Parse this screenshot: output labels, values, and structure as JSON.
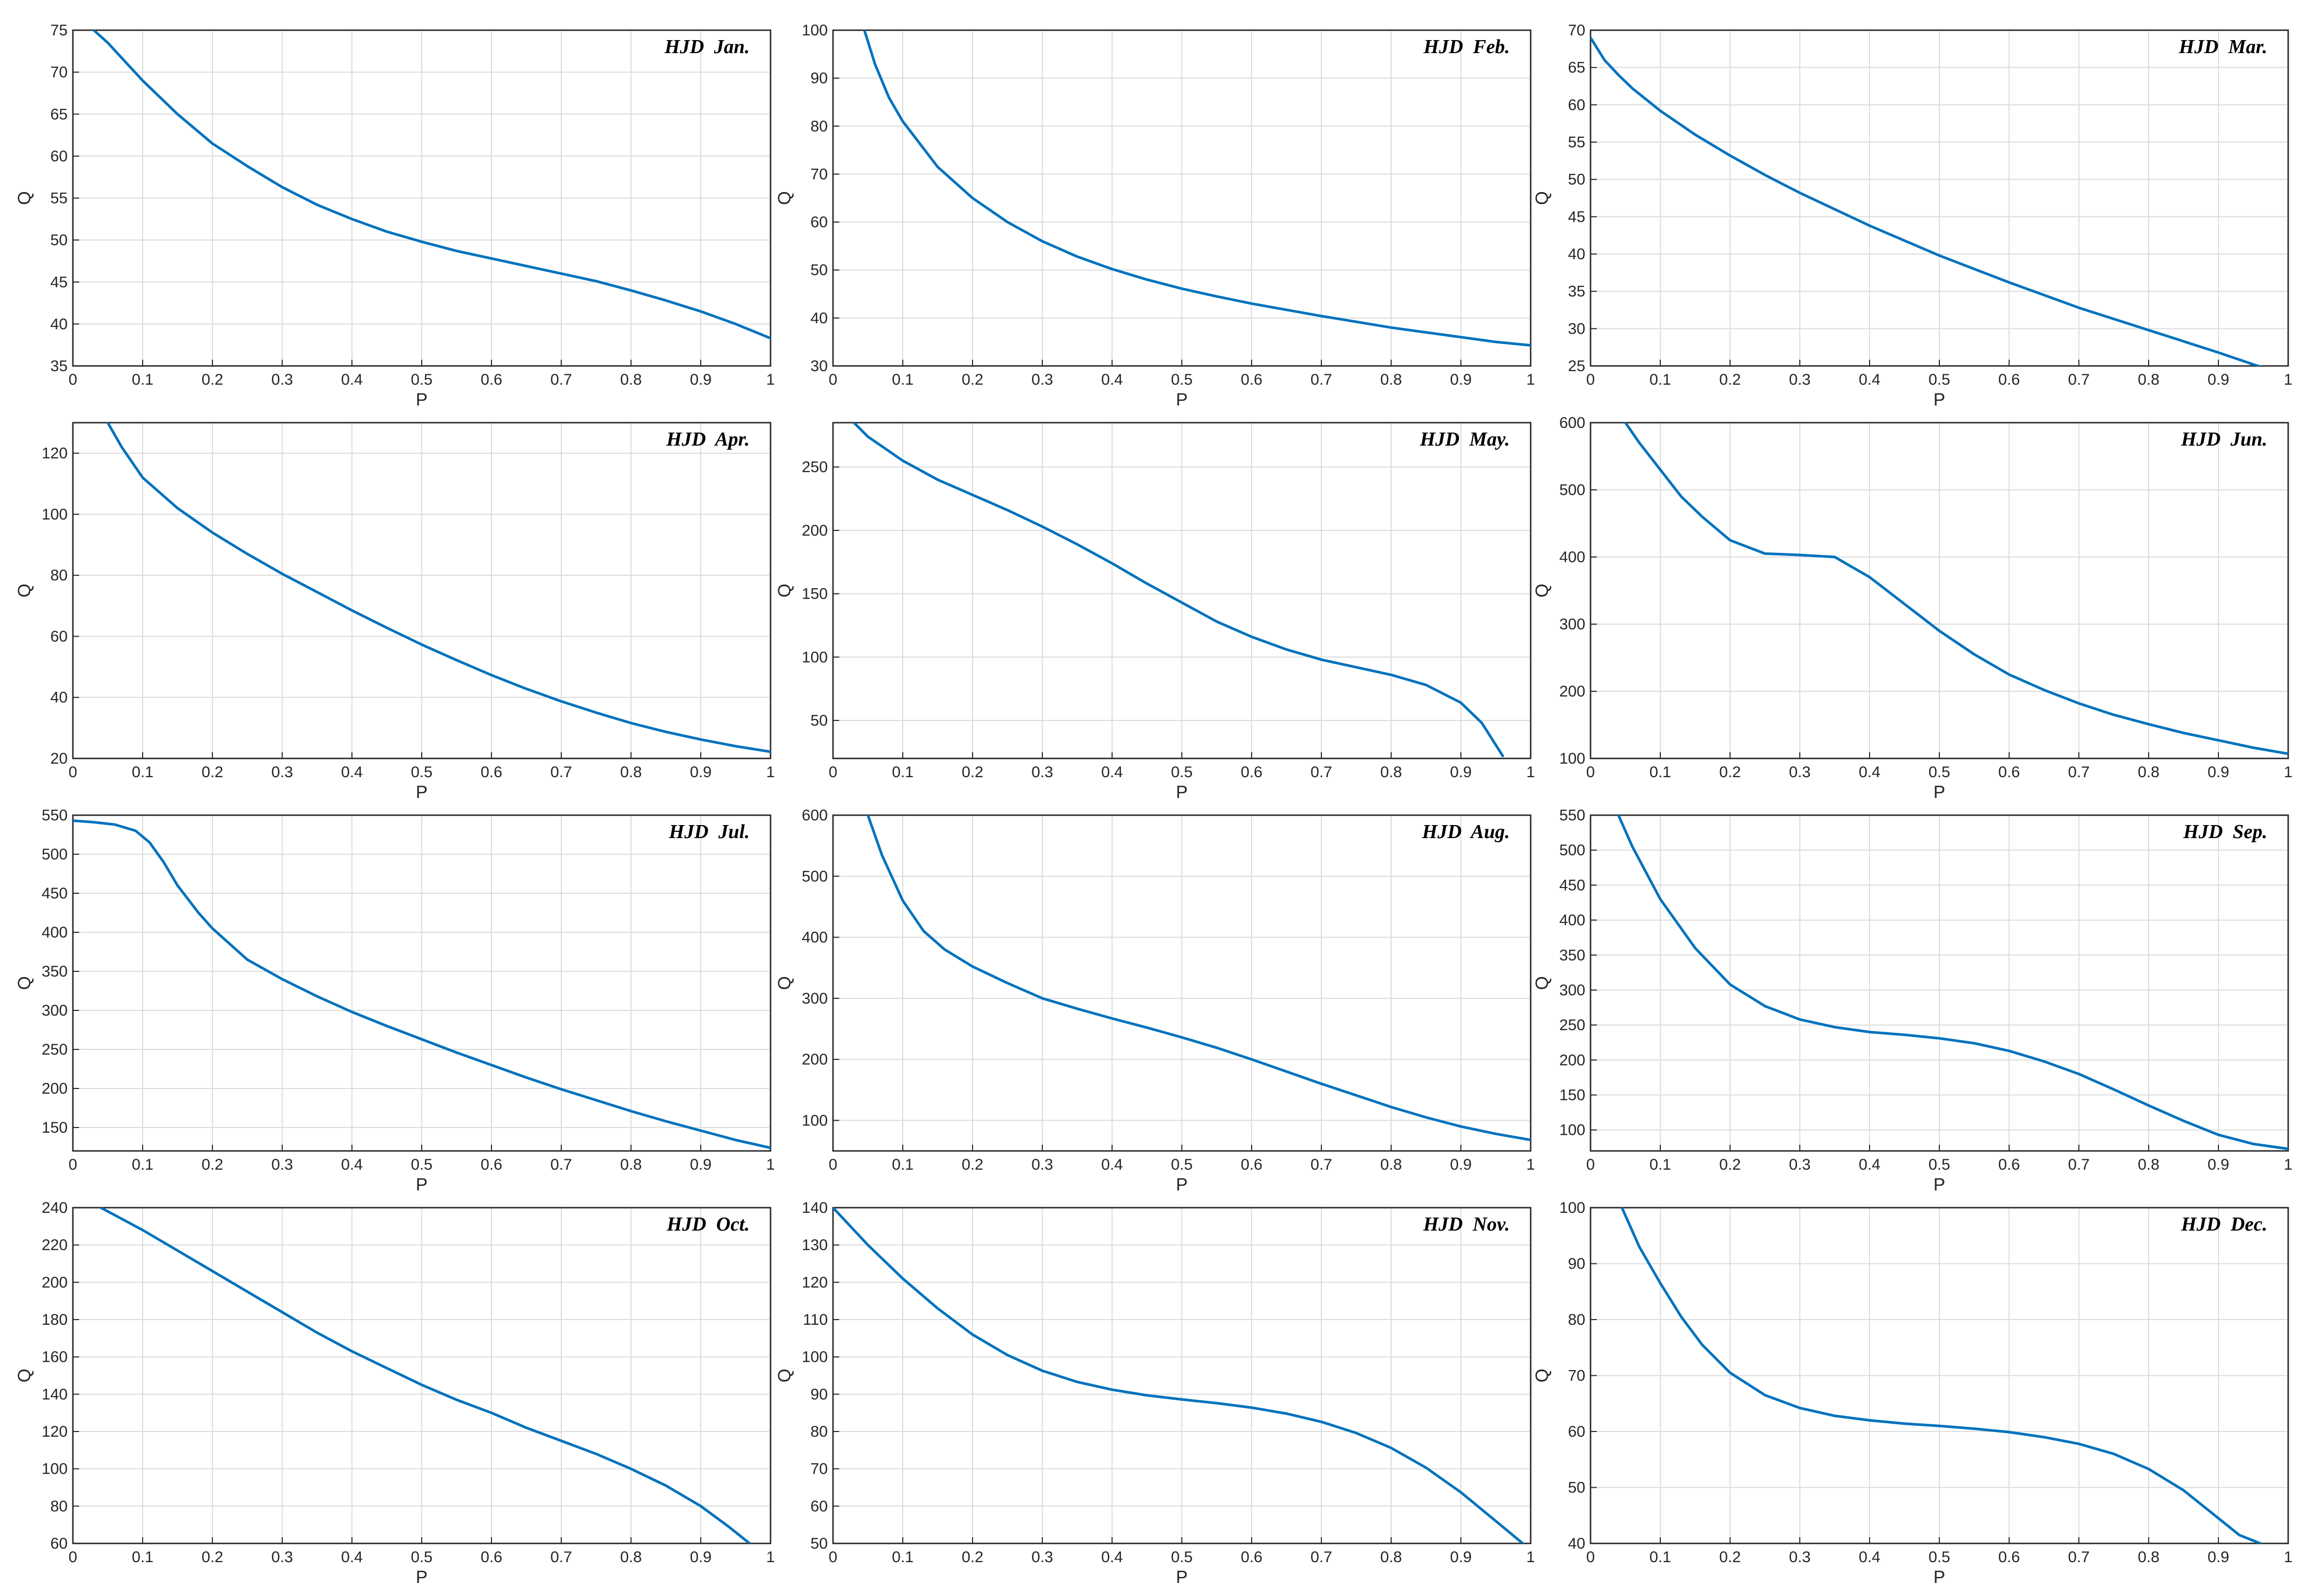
{
  "figure": {
    "line_color": "#0072bd"
  },
  "chart_data": [
    {
      "type": "line",
      "title": "HJD  Jan.",
      "xlabel": "P",
      "ylabel": "Q",
      "xlim": [
        0,
        1
      ],
      "ylim": [
        35,
        75
      ],
      "grid": true,
      "xticks": [
        0,
        0.1,
        0.2,
        0.3,
        0.4,
        0.5,
        0.6,
        0.7,
        0.8,
        0.9,
        1
      ],
      "yticks": [
        35,
        40,
        45,
        50,
        55,
        60,
        65,
        70,
        75
      ],
      "series": [
        {
          "x": [
            0.03,
            0.05,
            0.1,
            0.15,
            0.2,
            0.25,
            0.3,
            0.35,
            0.4,
            0.45,
            0.5,
            0.55,
            0.6,
            0.65,
            0.7,
            0.75,
            0.8,
            0.85,
            0.9,
            0.95,
            1.0
          ],
          "y": [
            75,
            73.5,
            69,
            65,
            61.5,
            58.8,
            56.3,
            54.2,
            52.5,
            51,
            49.8,
            48.7,
            47.8,
            46.9,
            46,
            45.1,
            44,
            42.8,
            41.5,
            40,
            38.3
          ]
        }
      ]
    },
    {
      "type": "line",
      "title": "HJD  Feb.",
      "xlabel": "P",
      "ylabel": "Q",
      "xlim": [
        0,
        1
      ],
      "ylim": [
        30,
        100
      ],
      "grid": true,
      "xticks": [
        0,
        0.1,
        0.2,
        0.3,
        0.4,
        0.5,
        0.6,
        0.7,
        0.8,
        0.9,
        1
      ],
      "yticks": [
        30,
        40,
        50,
        60,
        70,
        80,
        90,
        100
      ],
      "series": [
        {
          "x": [
            0.045,
            0.06,
            0.08,
            0.1,
            0.15,
            0.2,
            0.25,
            0.3,
            0.35,
            0.4,
            0.45,
            0.5,
            0.55,
            0.6,
            0.65,
            0.7,
            0.75,
            0.8,
            0.85,
            0.9,
            0.95,
            1.0
          ],
          "y": [
            100,
            93,
            86,
            81,
            71.5,
            65,
            60,
            56,
            52.8,
            50.2,
            48,
            46.1,
            44.5,
            43,
            41.7,
            40.4,
            39.2,
            38,
            37,
            36,
            35,
            34.3
          ]
        }
      ]
    },
    {
      "type": "line",
      "title": "HJD  Mar.",
      "xlabel": "P",
      "ylabel": "Q",
      "xlim": [
        0,
        1
      ],
      "ylim": [
        25,
        70
      ],
      "grid": true,
      "xticks": [
        0,
        0.1,
        0.2,
        0.3,
        0.4,
        0.5,
        0.6,
        0.7,
        0.8,
        0.9,
        1
      ],
      "yticks": [
        25,
        30,
        35,
        40,
        45,
        50,
        55,
        60,
        65,
        70
      ],
      "series": [
        {
          "x": [
            0.0,
            0.01,
            0.02,
            0.04,
            0.06,
            0.1,
            0.15,
            0.2,
            0.25,
            0.3,
            0.35,
            0.4,
            0.45,
            0.5,
            0.55,
            0.6,
            0.65,
            0.7,
            0.75,
            0.8,
            0.85,
            0.9,
            0.95,
            1.0
          ],
          "y": [
            69,
            67.5,
            66,
            64,
            62.2,
            59.2,
            56,
            53.2,
            50.6,
            48.2,
            46,
            43.8,
            41.8,
            39.8,
            38,
            36.2,
            34.5,
            32.8,
            31.3,
            29.8,
            28.3,
            26.8,
            25.2,
            23.7
          ]
        }
      ]
    },
    {
      "type": "line",
      "title": "HJD  Apr.",
      "xlabel": "P",
      "ylabel": "Q",
      "xlim": [
        0,
        1
      ],
      "ylim": [
        20,
        130
      ],
      "grid": true,
      "xticks": [
        0,
        0.1,
        0.2,
        0.3,
        0.4,
        0.5,
        0.6,
        0.7,
        0.8,
        0.9,
        1
      ],
      "yticks": [
        20,
        40,
        60,
        80,
        100,
        120
      ],
      "series": [
        {
          "x": [
            0.05,
            0.07,
            0.1,
            0.15,
            0.2,
            0.25,
            0.3,
            0.35,
            0.4,
            0.45,
            0.5,
            0.55,
            0.6,
            0.65,
            0.7,
            0.75,
            0.8,
            0.85,
            0.9,
            0.95,
            1.0
          ],
          "y": [
            130,
            122,
            112,
            102,
            94,
            87,
            80.5,
            74.5,
            68.5,
            62.8,
            57.3,
            52.2,
            47.3,
            42.8,
            38.7,
            35,
            31.6,
            28.7,
            26.2,
            24,
            22.2
          ]
        }
      ]
    },
    {
      "type": "line",
      "title": "HJD  May.",
      "xlabel": "P",
      "ylabel": "Q",
      "xlim": [
        0,
        1
      ],
      "ylim": [
        20,
        285
      ],
      "grid": true,
      "xticks": [
        0,
        0.1,
        0.2,
        0.3,
        0.4,
        0.5,
        0.6,
        0.7,
        0.8,
        0.9,
        1
      ],
      "yticks": [
        50,
        100,
        150,
        200,
        250
      ],
      "series": [
        {
          "x": [
            0.03,
            0.05,
            0.1,
            0.15,
            0.2,
            0.25,
            0.3,
            0.35,
            0.4,
            0.45,
            0.5,
            0.55,
            0.6,
            0.65,
            0.7,
            0.75,
            0.8,
            0.85,
            0.9,
            0.93,
            0.96
          ],
          "y": [
            285,
            274,
            255,
            240,
            228,
            216,
            203,
            189,
            174,
            158,
            143,
            128,
            116,
            106,
            98,
            92,
            86,
            78,
            64,
            48,
            22
          ]
        }
      ]
    },
    {
      "type": "line",
      "title": "HJD  Jun.",
      "xlabel": "P",
      "ylabel": "Q",
      "xlim": [
        0,
        1
      ],
      "ylim": [
        100,
        600
      ],
      "grid": true,
      "xticks": [
        0,
        0.1,
        0.2,
        0.3,
        0.4,
        0.5,
        0.6,
        0.7,
        0.8,
        0.9,
        1
      ],
      "yticks": [
        100,
        200,
        300,
        400,
        500,
        600
      ],
      "series": [
        {
          "x": [
            0.05,
            0.07,
            0.1,
            0.13,
            0.16,
            0.2,
            0.25,
            0.3,
            0.35,
            0.4,
            0.45,
            0.5,
            0.55,
            0.6,
            0.65,
            0.7,
            0.75,
            0.8,
            0.85,
            0.9,
            0.95,
            1.0
          ],
          "y": [
            600,
            570,
            530,
            490,
            460,
            425,
            405,
            403,
            400,
            370,
            330,
            290,
            255,
            225,
            202,
            182,
            165,
            151,
            138,
            127,
            116,
            107
          ]
        }
      ]
    },
    {
      "type": "line",
      "title": "HJD  Jul.",
      "xlabel": "P",
      "ylabel": "Q",
      "xlim": [
        0,
        1
      ],
      "ylim": [
        120,
        550
      ],
      "grid": true,
      "xticks": [
        0,
        0.1,
        0.2,
        0.3,
        0.4,
        0.5,
        0.6,
        0.7,
        0.8,
        0.9,
        1
      ],
      "yticks": [
        150,
        200,
        250,
        300,
        350,
        400,
        450,
        500,
        550
      ],
      "series": [
        {
          "x": [
            0.0,
            0.03,
            0.06,
            0.09,
            0.11,
            0.13,
            0.15,
            0.18,
            0.2,
            0.25,
            0.3,
            0.35,
            0.4,
            0.45,
            0.5,
            0.55,
            0.6,
            0.65,
            0.7,
            0.75,
            0.8,
            0.85,
            0.9,
            0.95,
            1.0
          ],
          "y": [
            543,
            541,
            538,
            530,
            515,
            490,
            460,
            425,
            405,
            365,
            340,
            318,
            298,
            280,
            263,
            246,
            230,
            214,
            199,
            185,
            171,
            158,
            146,
            134,
            124
          ]
        }
      ]
    },
    {
      "type": "line",
      "title": "HJD  Aug.",
      "xlabel": "P",
      "ylabel": "Q",
      "xlim": [
        0,
        1
      ],
      "ylim": [
        50,
        600
      ],
      "grid": true,
      "xticks": [
        0,
        0.1,
        0.2,
        0.3,
        0.4,
        0.5,
        0.6,
        0.7,
        0.8,
        0.9,
        1
      ],
      "yticks": [
        100,
        200,
        300,
        400,
        500,
        600
      ],
      "series": [
        {
          "x": [
            0.05,
            0.07,
            0.1,
            0.13,
            0.16,
            0.2,
            0.25,
            0.3,
            0.35,
            0.4,
            0.45,
            0.5,
            0.55,
            0.6,
            0.65,
            0.7,
            0.75,
            0.8,
            0.85,
            0.9,
            0.95,
            1.0
          ],
          "y": [
            600,
            535,
            460,
            410,
            380,
            352,
            325,
            300,
            283,
            267,
            252,
            236,
            219,
            200,
            180,
            160,
            141,
            122,
            105,
            90,
            78,
            68
          ]
        }
      ]
    },
    {
      "type": "line",
      "title": "HJD  Sep.",
      "xlabel": "P",
      "ylabel": "Q",
      "xlim": [
        0,
        1
      ],
      "ylim": [
        70,
        550
      ],
      "grid": true,
      "xticks": [
        0,
        0.1,
        0.2,
        0.3,
        0.4,
        0.5,
        0.6,
        0.7,
        0.8,
        0.9,
        1
      ],
      "yticks": [
        100,
        150,
        200,
        250,
        300,
        350,
        400,
        450,
        500,
        550
      ],
      "series": [
        {
          "x": [
            0.04,
            0.06,
            0.1,
            0.15,
            0.2,
            0.25,
            0.3,
            0.35,
            0.4,
            0.45,
            0.5,
            0.55,
            0.6,
            0.65,
            0.7,
            0.75,
            0.8,
            0.85,
            0.9,
            0.95,
            1.0
          ],
          "y": [
            550,
            505,
            430,
            360,
            308,
            277,
            258,
            247,
            240,
            236,
            231,
            224,
            213,
            198,
            180,
            158,
            135,
            113,
            93,
            80,
            73
          ]
        }
      ]
    },
    {
      "type": "line",
      "title": "HJD  Oct.",
      "xlabel": "P",
      "ylabel": "Q",
      "xlim": [
        0,
        1
      ],
      "ylim": [
        60,
        240
      ],
      "grid": true,
      "xticks": [
        0,
        0.1,
        0.2,
        0.3,
        0.4,
        0.5,
        0.6,
        0.7,
        0.8,
        0.9,
        1
      ],
      "yticks": [
        60,
        80,
        100,
        120,
        140,
        160,
        180,
        200,
        220,
        240
      ],
      "series": [
        {
          "x": [
            0.04,
            0.06,
            0.1,
            0.15,
            0.2,
            0.25,
            0.3,
            0.35,
            0.4,
            0.45,
            0.5,
            0.55,
            0.6,
            0.65,
            0.7,
            0.75,
            0.8,
            0.85,
            0.9,
            0.94,
            0.97
          ],
          "y": [
            240,
            236,
            228,
            217,
            206,
            195,
            184,
            173,
            163,
            154,
            145,
            137,
            130,
            122,
            115,
            108,
            100,
            91,
            80,
            69,
            60
          ]
        }
      ]
    },
    {
      "type": "line",
      "title": "HJD  Nov.",
      "xlabel": "P",
      "ylabel": "Q",
      "xlim": [
        0,
        1
      ],
      "ylim": [
        50,
        140
      ],
      "grid": true,
      "xticks": [
        0,
        0.1,
        0.2,
        0.3,
        0.4,
        0.5,
        0.6,
        0.7,
        0.8,
        0.9,
        1
      ],
      "yticks": [
        50,
        60,
        70,
        80,
        90,
        100,
        110,
        120,
        130,
        140
      ],
      "series": [
        {
          "x": [
            0.0,
            0.05,
            0.1,
            0.15,
            0.2,
            0.25,
            0.3,
            0.35,
            0.4,
            0.45,
            0.5,
            0.55,
            0.6,
            0.65,
            0.7,
            0.75,
            0.8,
            0.85,
            0.9,
            0.95,
            0.99
          ],
          "y": [
            140,
            130,
            121,
            113,
            106,
            100.5,
            96.3,
            93.3,
            91.2,
            89.7,
            88.6,
            87.6,
            86.4,
            84.8,
            82.6,
            79.6,
            75.6,
            70.3,
            63.7,
            56,
            49.8
          ]
        }
      ]
    },
    {
      "type": "line",
      "title": "HJD  Dec.",
      "xlabel": "P",
      "ylabel": "Q",
      "xlim": [
        0,
        1
      ],
      "ylim": [
        40,
        100
      ],
      "grid": true,
      "xticks": [
        0,
        0.1,
        0.2,
        0.3,
        0.4,
        0.5,
        0.6,
        0.7,
        0.8,
        0.9,
        1
      ],
      "yticks": [
        40,
        50,
        60,
        70,
        80,
        90,
        100
      ],
      "series": [
        {
          "x": [
            0.045,
            0.07,
            0.1,
            0.13,
            0.16,
            0.2,
            0.25,
            0.3,
            0.35,
            0.4,
            0.45,
            0.5,
            0.55,
            0.6,
            0.65,
            0.7,
            0.75,
            0.8,
            0.85,
            0.9,
            0.93,
            0.96
          ],
          "y": [
            100,
            93,
            86.5,
            80.5,
            75.5,
            70.5,
            66.5,
            64.2,
            62.8,
            62,
            61.4,
            61,
            60.5,
            59.9,
            59,
            57.8,
            56,
            53.3,
            49.5,
            44.5,
            41.5,
            40
          ]
        }
      ]
    }
  ]
}
